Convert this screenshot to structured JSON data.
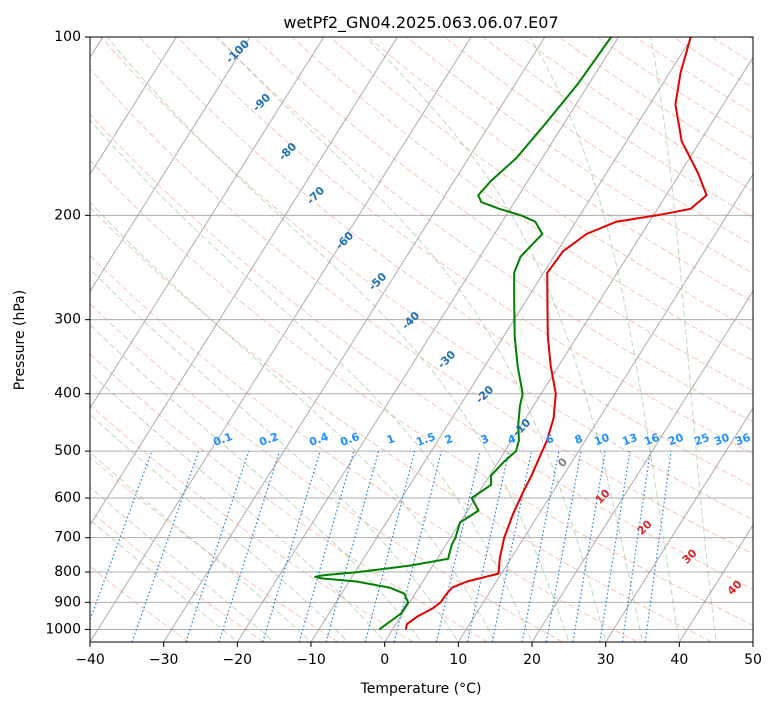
{
  "chart_data": {
    "type": "line",
    "title": "wetPf2_GN04.2025.063.06.07.E07",
    "xlabel": "Temperature (°C)",
    "ylabel": "Pressure (hPa)",
    "xlim": [
      -40,
      50
    ],
    "ylim": [
      1050,
      100
    ],
    "y_scale": "log",
    "grid": true,
    "x_ticks": [
      -40,
      -30,
      -20,
      -10,
      0,
      10,
      20,
      30,
      40,
      50
    ],
    "x_tick_labels": [
      "−40",
      "−30",
      "−20",
      "−10",
      "0",
      "10",
      "20",
      "30",
      "40",
      "50"
    ],
    "y_ticks": [
      100,
      200,
      300,
      400,
      500,
      600,
      700,
      800,
      900,
      1000
    ],
    "y_tick_labels": [
      "100",
      "200",
      "300",
      "400",
      "500",
      "600",
      "700",
      "800",
      "900",
      "1000"
    ],
    "isotherm_labels": [
      "-100",
      "-90",
      "-80",
      "-70",
      "-60",
      "-50",
      "-40",
      "-30",
      "-20",
      "-10",
      "0",
      "10",
      "20",
      "30",
      "40"
    ],
    "mixing_ratio_labels": [
      "0.1",
      "0.2",
      "0.4",
      "0.6",
      "1",
      "1.5",
      "2",
      "3",
      "4",
      "6",
      "8",
      "10",
      "13",
      "16",
      "20",
      "25",
      "30",
      "36"
    ],
    "series": [
      {
        "color": "#e00000",
        "pressure": [
          100,
          115,
          130,
          150,
          170,
          185,
          195,
          200,
          205,
          215,
          230,
          250,
          280,
          320,
          360,
          400,
          440,
          480,
          510,
          550,
          590,
          640,
          700,
          760,
          805,
          830,
          850,
          870,
          900,
          920,
          950,
          980,
          1000
        ],
        "temperature": [
          -10.2,
          -8.5,
          -6.5,
          -2.5,
          2.5,
          5.5,
          4.5,
          0.5,
          -4.5,
          -7.5,
          -9.2,
          -9.5,
          -7.0,
          -4.0,
          -1.0,
          2.0,
          3.8,
          4.8,
          5.2,
          5.7,
          6.0,
          6.5,
          7.3,
          8.5,
          9.6,
          6.0,
          4.5,
          4.3,
          4.2,
          3.7,
          2.3,
          1.5,
          1.8
        ]
      },
      {
        "color": "#008000",
        "pressure": [
          100,
          120,
          140,
          160,
          175,
          185,
          190,
          195,
          200,
          205,
          215,
          225,
          235,
          250,
          280,
          320,
          360,
          400,
          420,
          450,
          480,
          500,
          520,
          550,
          570,
          600,
          630,
          660,
          700,
          720,
          760,
          780,
          800,
          810,
          815,
          820,
          830,
          850,
          870,
          900,
          940,
          1000
        ],
        "temperature": [
          -21.0,
          -21.5,
          -22.5,
          -23.5,
          -25.0,
          -25.5,
          -24.5,
          -21.5,
          -18.0,
          -15.5,
          -13.5,
          -14.0,
          -14.5,
          -14.0,
          -11.5,
          -8.5,
          -5.5,
          -2.5,
          -1.8,
          -0.5,
          1.0,
          1.5,
          0.8,
          0.2,
          1.0,
          -0.5,
          1.5,
          0.0,
          0.7,
          0.8,
          1.5,
          -3.0,
          -9.5,
          -14.0,
          -15.0,
          -14.0,
          -9.0,
          -4.0,
          -1.5,
          -0.2,
          -0.2,
          -1.8
        ]
      }
    ]
  }
}
